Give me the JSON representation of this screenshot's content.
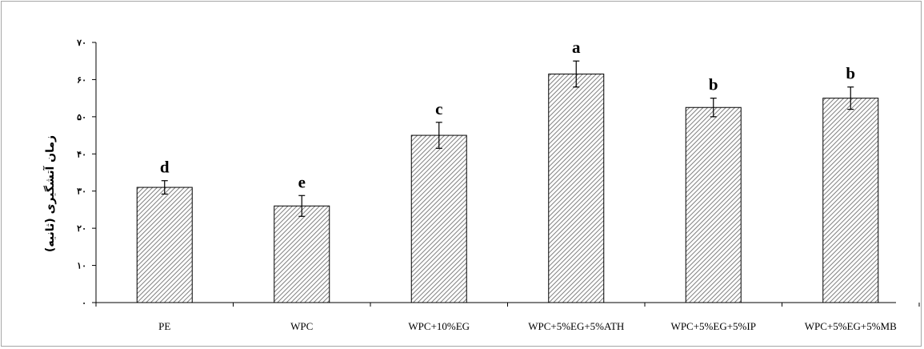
{
  "chart_data": {
    "type": "bar",
    "title": "",
    "xlabel": "",
    "ylabel": "زمان آتشگیری (ثانیه)",
    "ylim": [
      0,
      70
    ],
    "yticks": [
      0,
      10,
      20,
      30,
      40,
      50,
      60,
      70
    ],
    "ytick_labels": [
      "۰",
      "۱۰",
      "۲۰",
      "۳۰",
      "۴۰",
      "۵۰",
      "۶۰",
      "۷۰"
    ],
    "categories": [
      "PE",
      "WPC",
      "WPC+10%EG",
      "WPC+5%EG+5%ATH",
      "WPC+5%EG+5%IP",
      "WPC+5%EG+5%MB"
    ],
    "values": [
      31,
      26,
      45,
      61.5,
      52.5,
      55
    ],
    "errors": [
      1.8,
      2.8,
      3.5,
      3.5,
      2.5,
      3.0
    ],
    "significance_letters": [
      "d",
      "e",
      "c",
      "a",
      "b",
      "b"
    ],
    "grid": false,
    "legend": "none",
    "bar_fill": "hatched",
    "colors": {
      "bar_stroke": "#000000",
      "hatch": "#7f7f7f",
      "frame": "#a6a6a6"
    }
  }
}
